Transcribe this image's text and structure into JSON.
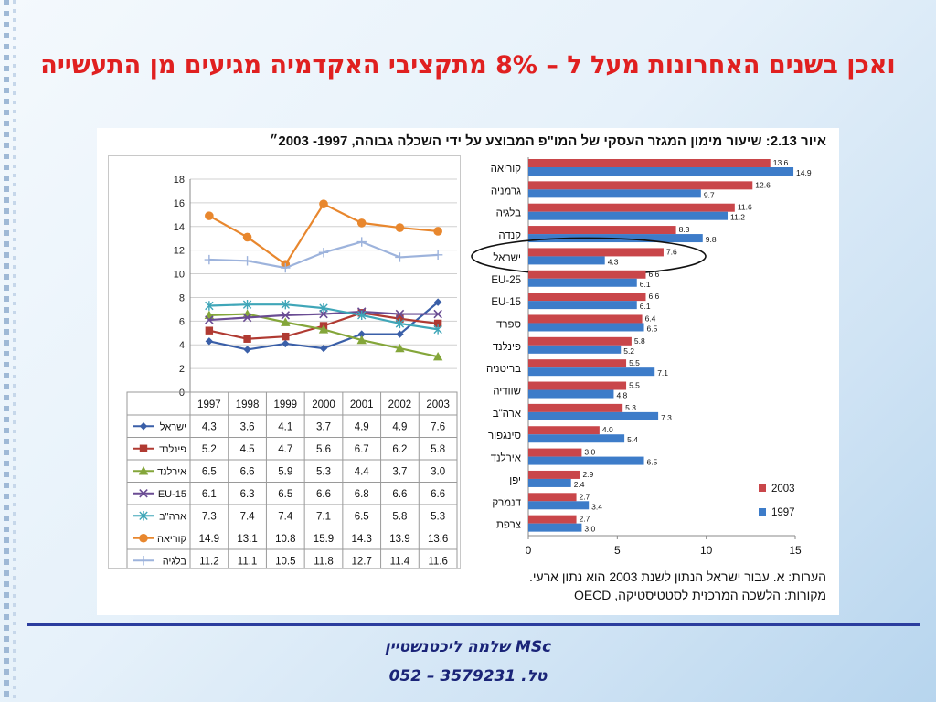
{
  "slide": {
    "title": "ואכן בשנים האחרונות מעל ל – 8% מתקציבי האקדמיה מגיעים מן התעשייה",
    "author": "שלמה ליכטנשטיין MSc",
    "phone": "טל. 3579231 – 052"
  },
  "figure": {
    "caption": "איור 2.13: שיעור מימון המגזר העסקי של המו\"פ המבוצע על ידי השכלה גבוהה, 1997- 2003״",
    "note1": "הערות: א. עבור ישראל הנתון לשנת 2003 הוא נתון ארעי.",
    "note2": "מקורות: הלשכה המרכזית לסטטיסטיקה, OECD"
  },
  "chart_data": [
    {
      "type": "line",
      "x": [
        "1997",
        "1998",
        "1999",
        "2000",
        "2001",
        "2002",
        "2003"
      ],
      "ylim": [
        0,
        18
      ],
      "yticks": [
        0,
        2,
        4,
        6,
        8,
        10,
        12,
        14,
        16,
        18
      ],
      "grid": true,
      "legend": "data-table-below",
      "series": [
        {
          "name": "ישראל",
          "color": "#3a5fa8",
          "marker": "diamond",
          "values": [
            4.3,
            3.6,
            4.1,
            3.7,
            4.9,
            4.9,
            7.6
          ]
        },
        {
          "name": "פינלנד",
          "color": "#b03a32",
          "marker": "square",
          "values": [
            5.2,
            4.5,
            4.7,
            5.6,
            6.7,
            6.2,
            5.8
          ]
        },
        {
          "name": "אירלנד",
          "color": "#84a63a",
          "marker": "triangle",
          "values": [
            6.5,
            6.6,
            5.9,
            5.3,
            4.4,
            3.7,
            3.0
          ]
        },
        {
          "name": "EU-15",
          "color": "#6a4c93",
          "marker": "x",
          "values": [
            6.1,
            6.3,
            6.5,
            6.6,
            6.8,
            6.6,
            6.6
          ]
        },
        {
          "name": "ארה\"ב",
          "color": "#3fa6b8",
          "marker": "star",
          "values": [
            7.3,
            7.4,
            7.4,
            7.1,
            6.5,
            5.8,
            5.3
          ]
        },
        {
          "name": "קוריאה",
          "color": "#e8872e",
          "marker": "circle",
          "values": [
            14.9,
            13.1,
            10.8,
            15.9,
            14.3,
            13.9,
            13.6
          ]
        },
        {
          "name": "בלגיה",
          "color": "#9db3dc",
          "marker": "plus",
          "values": [
            11.2,
            11.1,
            10.5,
            11.8,
            12.7,
            11.4,
            11.6
          ]
        }
      ]
    },
    {
      "type": "bar",
      "orientation": "horizontal",
      "categories": [
        "קוריאה",
        "גרמניה",
        "בלגיה",
        "קנדה",
        "ישראל",
        "EU-25",
        "EU-15",
        "ספרד",
        "פינלנד",
        "בריטניה",
        "שוודיה",
        "ארה\"ב",
        "סינגפור",
        "אירלנד",
        "יפן",
        "דנמרק",
        "צרפת"
      ],
      "xlim": [
        0,
        15
      ],
      "xticks": [
        0,
        5,
        10,
        15
      ],
      "legend": "bottom-right",
      "highlight": "ישראל",
      "series": [
        {
          "name": "2003",
          "color": "#c9464a",
          "values": [
            13.6,
            12.6,
            11.6,
            8.3,
            7.6,
            6.6,
            6.6,
            6.4,
            5.8,
            5.5,
            5.5,
            5.3,
            4.0,
            3.0,
            2.9,
            2.7,
            2.7
          ]
        },
        {
          "name": "1997",
          "color": "#3d7cc9",
          "values": [
            14.9,
            9.7,
            11.2,
            9.8,
            4.3,
            6.1,
            6.1,
            6.5,
            5.2,
            7.1,
            4.8,
            7.3,
            5.4,
            6.5,
            2.4,
            3.4,
            3.0
          ]
        }
      ]
    }
  ]
}
